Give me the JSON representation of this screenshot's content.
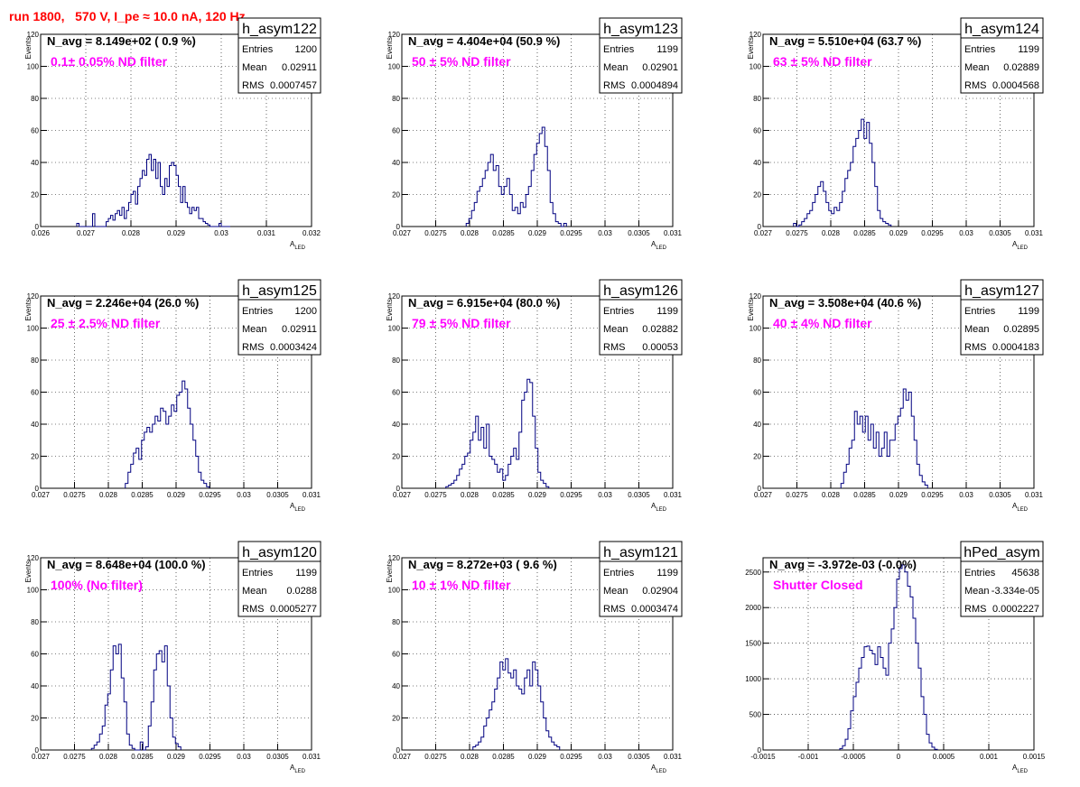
{
  "page": {
    "title": "run 1800,   570 V, I_pe ≈ 10.0 nA, 120 Hz"
  },
  "colors": {
    "histogram": "#000080",
    "filter_label": "#ff00ff",
    "title": "#ff0000"
  },
  "chart_data": [
    {
      "type": "histogram",
      "name": "h_asym122",
      "navg": "N_avg = 8.149e+02 ( 0.9 %)",
      "label": "0.1± 0.05% ND filter",
      "stats": {
        "entries_label": "Entries",
        "entries": "1200",
        "mean_label": "Mean",
        "mean": "0.02911",
        "rms_label": "RMS",
        "rms": "0.0007457"
      },
      "xlabel": "A",
      "xlabel_sub": "LED",
      "ylabel": "Events",
      "xlim": [
        0.026,
        0.032
      ],
      "ylim": [
        0,
        120
      ],
      "xticks": [
        0.026,
        0.027,
        0.028,
        0.029,
        0.03,
        0.031,
        0.032
      ],
      "xticklabels": [
        "0.026",
        "0.027",
        "0.028",
        "0.029",
        "0.03",
        "0.031",
        "0.032"
      ],
      "yticks": [
        0,
        20,
        40,
        60,
        80,
        100,
        120
      ],
      "yticklabels": [
        "0",
        "20",
        "40",
        "60",
        "80",
        "100",
        "120"
      ],
      "bin_start": 0.0268,
      "bin_width": 5e-05,
      "values": [
        2,
        0,
        0,
        0,
        0,
        0,
        0,
        8,
        0,
        0,
        0,
        0,
        0,
        3,
        5,
        7,
        4,
        8,
        10,
        7,
        12,
        5,
        10,
        15,
        20,
        22,
        14,
        25,
        30,
        35,
        32,
        42,
        45,
        35,
        42,
        30,
        40,
        25,
        20,
        30,
        25,
        38,
        40,
        38,
        32,
        25,
        15,
        25,
        15,
        12,
        8,
        12,
        10,
        12,
        5,
        5,
        3,
        2,
        1,
        0,
        0,
        0,
        0,
        2,
        0,
        0,
        0,
        0
      ]
    },
    {
      "type": "histogram",
      "name": "h_asym123",
      "navg": "N_avg = 4.404e+04 (50.9 %)",
      "label": "50 ± 5% ND filter",
      "stats": {
        "entries_label": "Entries",
        "entries": "1199",
        "mean_label": "Mean",
        "mean": "0.02901",
        "rms_label": "RMS",
        "rms": "0.0004894"
      },
      "xlabel": "A",
      "xlabel_sub": "LED",
      "ylabel": "Events",
      "xlim": [
        0.027,
        0.031
      ],
      "ylim": [
        0,
        120
      ],
      "xticks": [
        0.027,
        0.0275,
        0.028,
        0.0285,
        0.029,
        0.0295,
        0.03,
        0.0305,
        0.031
      ],
      "xticklabels": [
        "0.027",
        "0.0275",
        "0.028",
        "0.0285",
        "0.029",
        "0.0295",
        "0.03",
        "0.0305",
        "0.031"
      ],
      "yticks": [
        0,
        20,
        40,
        60,
        80,
        100,
        120
      ],
      "yticklabels": [
        "0",
        "20",
        "40",
        "60",
        "80",
        "100",
        "120"
      ],
      "bin_start": 0.02795,
      "bin_width": 4e-05,
      "values": [
        2,
        5,
        10,
        15,
        22,
        25,
        30,
        35,
        40,
        45,
        35,
        38,
        25,
        20,
        25,
        30,
        20,
        10,
        12,
        8,
        15,
        12,
        20,
        25,
        35,
        45,
        52,
        58,
        62,
        50,
        35,
        15,
        8,
        3,
        2,
        0,
        2
      ]
    },
    {
      "type": "histogram",
      "name": "h_asym124",
      "navg": "N_avg = 5.510e+04 (63.7 %)",
      "label": "63 ± 5% ND filter",
      "stats": {
        "entries_label": "Entries",
        "entries": "1199",
        "mean_label": "Mean",
        "mean": "0.02889",
        "rms_label": "RMS",
        "rms": "0.0004568"
      },
      "xlabel": "A",
      "xlabel_sub": "LED",
      "ylabel": "Events",
      "xlim": [
        0.027,
        0.031
      ],
      "ylim": [
        0,
        120
      ],
      "xticks": [
        0.027,
        0.0275,
        0.028,
        0.0285,
        0.029,
        0.0295,
        0.03,
        0.0305,
        0.031
      ],
      "xticklabels": [
        "0.027",
        "0.0275",
        "0.028",
        "0.0285",
        "0.029",
        "0.0295",
        "0.03",
        "0.0305",
        "0.031"
      ],
      "yticks": [
        0,
        20,
        40,
        60,
        80,
        100,
        120
      ],
      "yticklabels": [
        "0",
        "20",
        "40",
        "60",
        "80",
        "100",
        "120"
      ],
      "bin_start": 0.02745,
      "bin_width": 4e-05,
      "values": [
        2,
        0,
        1,
        3,
        5,
        8,
        10,
        15,
        20,
        25,
        28,
        22,
        15,
        10,
        8,
        12,
        10,
        15,
        22,
        30,
        35,
        40,
        50,
        55,
        60,
        67,
        55,
        65,
        52,
        40,
        25,
        10,
        5,
        3,
        2,
        1
      ]
    },
    {
      "type": "histogram",
      "name": "h_asym125",
      "navg": "N_avg = 2.246e+04 (26.0 %)",
      "label": "25 ± 2.5% ND filter",
      "stats": {
        "entries_label": "Entries",
        "entries": "1200",
        "mean_label": "Mean",
        "mean": "0.02911",
        "rms_label": "RMS",
        "rms": "0.0003424"
      },
      "xlabel": "A",
      "xlabel_sub": "LED",
      "ylabel": "Events",
      "xlim": [
        0.027,
        0.031
      ],
      "ylim": [
        0,
        120
      ],
      "xticks": [
        0.027,
        0.0275,
        0.028,
        0.0285,
        0.029,
        0.0295,
        0.03,
        0.0305,
        0.031
      ],
      "xticklabels": [
        "0.027",
        "0.0275",
        "0.028",
        "0.0285",
        "0.029",
        "0.0295",
        "0.03",
        "0.0305",
        "0.031"
      ],
      "yticks": [
        0,
        20,
        40,
        60,
        80,
        100,
        120
      ],
      "yticklabels": [
        "0",
        "20",
        "40",
        "60",
        "80",
        "100",
        "120"
      ],
      "bin_start": 0.02825,
      "bin_width": 4e-05,
      "values": [
        3,
        10,
        15,
        22,
        25,
        18,
        30,
        35,
        38,
        35,
        40,
        45,
        42,
        50,
        48,
        40,
        45,
        52,
        48,
        58,
        60,
        67,
        62,
        50,
        40,
        30,
        20,
        10,
        5,
        3,
        1
      ]
    },
    {
      "type": "histogram",
      "name": "h_asym126",
      "navg": "N_avg = 6.915e+04 (80.0 %)",
      "label": "79 ± 5% ND filter",
      "stats": {
        "entries_label": "Entries",
        "entries": "1199",
        "mean_label": "Mean",
        "mean": "0.02882",
        "rms_label": "RMS",
        "rms": "0.00053"
      },
      "xlabel": "A",
      "xlabel_sub": "LED",
      "ylabel": "Events",
      "xlim": [
        0.027,
        0.031
      ],
      "ylim": [
        0,
        120
      ],
      "xticks": [
        0.027,
        0.0275,
        0.028,
        0.0285,
        0.029,
        0.0295,
        0.03,
        0.0305,
        0.031
      ],
      "xticklabels": [
        "0.027",
        "0.0275",
        "0.028",
        "0.0285",
        "0.029",
        "0.0295",
        "0.03",
        "0.0305",
        "0.031"
      ],
      "yticks": [
        0,
        20,
        40,
        60,
        80,
        100,
        120
      ],
      "yticklabels": [
        "0",
        "20",
        "40",
        "60",
        "80",
        "100",
        "120"
      ],
      "bin_start": 0.02765,
      "bin_width": 4e-05,
      "values": [
        1,
        2,
        3,
        5,
        8,
        12,
        15,
        20,
        22,
        30,
        35,
        45,
        30,
        38,
        25,
        40,
        20,
        18,
        15,
        10,
        12,
        5,
        8,
        15,
        20,
        25,
        18,
        35,
        55,
        60,
        68,
        66,
        45,
        25,
        10,
        5,
        3,
        1
      ]
    },
    {
      "type": "histogram",
      "name": "h_asym127",
      "navg": "N_avg = 3.508e+04 (40.6 %)",
      "label": "40 ± 4% ND filter",
      "stats": {
        "entries_label": "Entries",
        "entries": "1199",
        "mean_label": "Mean",
        "mean": "0.02895",
        "rms_label": "RMS",
        "rms": "0.0004183"
      },
      "xlabel": "A",
      "xlabel_sub": "LED",
      "ylabel": "Events",
      "xlim": [
        0.027,
        0.031
      ],
      "ylim": [
        0,
        120
      ],
      "xticks": [
        0.027,
        0.0275,
        0.028,
        0.0285,
        0.029,
        0.0295,
        0.03,
        0.0305,
        0.031
      ],
      "xticklabels": [
        "0.027",
        "0.0275",
        "0.028",
        "0.0285",
        "0.029",
        "0.0295",
        "0.03",
        "0.0305",
        "0.031"
      ],
      "yticks": [
        0,
        20,
        40,
        60,
        80,
        100,
        120
      ],
      "yticklabels": [
        "0",
        "20",
        "40",
        "60",
        "80",
        "100",
        "120"
      ],
      "bin_start": 0.02815,
      "bin_width": 4e-05,
      "values": [
        3,
        10,
        15,
        25,
        30,
        48,
        40,
        45,
        35,
        45,
        30,
        40,
        25,
        35,
        20,
        25,
        35,
        20,
        30,
        30,
        40,
        45,
        50,
        62,
        55,
        60,
        45,
        30,
        15,
        8,
        4,
        2
      ]
    },
    {
      "type": "histogram",
      "name": "h_asym120",
      "navg": "N_avg = 8.648e+04 (100.0 %)",
      "label": "100% (No filter)",
      "stats": {
        "entries_label": "Entries",
        "entries": "1199",
        "mean_label": "Mean",
        "mean": "0.0288",
        "rms_label": "RMS",
        "rms": "0.0005277"
      },
      "xlabel": "A",
      "xlabel_sub": "LED",
      "ylabel": "Events",
      "xlim": [
        0.027,
        0.031
      ],
      "ylim": [
        0,
        120
      ],
      "xticks": [
        0.027,
        0.0275,
        0.028,
        0.0285,
        0.029,
        0.0295,
        0.03,
        0.0305,
        0.031
      ],
      "xticklabels": [
        "0.027",
        "0.0275",
        "0.028",
        "0.0285",
        "0.029",
        "0.0295",
        "0.03",
        "0.0305",
        "0.031"
      ],
      "yticks": [
        0,
        20,
        40,
        60,
        80,
        100,
        120
      ],
      "yticklabels": [
        "0",
        "20",
        "40",
        "60",
        "80",
        "100",
        "120"
      ],
      "bin_start": 0.02775,
      "bin_width": 4e-05,
      "values": [
        1,
        3,
        5,
        10,
        15,
        28,
        35,
        50,
        65,
        60,
        66,
        45,
        30,
        10,
        3,
        1,
        0,
        0,
        5,
        0,
        2,
        15,
        30,
        50,
        60,
        62,
        55,
        65,
        40,
        20,
        8,
        4,
        2
      ]
    },
    {
      "type": "histogram",
      "name": "h_asym121",
      "navg": "N_avg = 8.272e+03 ( 9.6 %)",
      "label": "10 ± 1% ND filter",
      "stats": {
        "entries_label": "Entries",
        "entries": "1199",
        "mean_label": "Mean",
        "mean": "0.02904",
        "rms_label": "RMS",
        "rms": "0.0003474"
      },
      "xlabel": "A",
      "xlabel_sub": "LED",
      "ylabel": "Events",
      "xlim": [
        0.027,
        0.031
      ],
      "ylim": [
        0,
        120
      ],
      "xticks": [
        0.027,
        0.0275,
        0.028,
        0.0285,
        0.029,
        0.0295,
        0.03,
        0.0305,
        0.031
      ],
      "xticklabels": [
        "0.027",
        "0.0275",
        "0.028",
        "0.0285",
        "0.029",
        "0.0295",
        "0.03",
        "0.0305",
        "0.031"
      ],
      "yticks": [
        0,
        20,
        40,
        60,
        80,
        100,
        120
      ],
      "yticklabels": [
        "0",
        "20",
        "40",
        "60",
        "80",
        "100",
        "120"
      ],
      "bin_start": 0.02805,
      "bin_width": 4e-05,
      "values": [
        2,
        3,
        5,
        8,
        15,
        20,
        25,
        30,
        38,
        45,
        55,
        50,
        57,
        48,
        45,
        50,
        40,
        38,
        35,
        45,
        50,
        40,
        55,
        50,
        40,
        30,
        20,
        12,
        8,
        5,
        3,
        2
      ]
    },
    {
      "type": "histogram",
      "name": "hPed_asym",
      "navg": "N_avg = -3.972e-03 (-0.0%)",
      "label": "Shutter Closed",
      "stats": {
        "entries_label": "Entries",
        "entries": "45638",
        "mean_label": "Mean",
        "mean": "-3.334e-05",
        "rms_label": "RMS",
        "rms": "0.0002227"
      },
      "xlabel": "A",
      "xlabel_sub": "LED",
      "ylabel": "",
      "xlim": [
        -0.0015,
        0.0015
      ],
      "ylim": [
        0,
        2700
      ],
      "xticks": [
        -0.0015,
        -0.001,
        -0.0005,
        0,
        0.0005,
        0.001,
        0.0015
      ],
      "xticklabels": [
        "-0.0015",
        "-0.001",
        "-0.0005",
        "0",
        "0.0005",
        "0.001",
        "0.0015"
      ],
      "yticks": [
        0,
        500,
        1000,
        1500,
        2000,
        2500
      ],
      "yticklabels": [
        "0",
        "500",
        "1000",
        "1500",
        "2000",
        "2500"
      ],
      "bin_start": -0.00065,
      "bin_width": 3e-05,
      "values": [
        20,
        60,
        150,
        300,
        550,
        750,
        950,
        1150,
        1300,
        1450,
        1460,
        1400,
        1350,
        1200,
        1450,
        1300,
        1150,
        1050,
        1500,
        1700,
        2000,
        2400,
        2550,
        2600,
        2500,
        2300,
        2150,
        1850,
        1500,
        1150,
        750,
        500,
        220,
        100,
        40,
        10
      ]
    }
  ]
}
